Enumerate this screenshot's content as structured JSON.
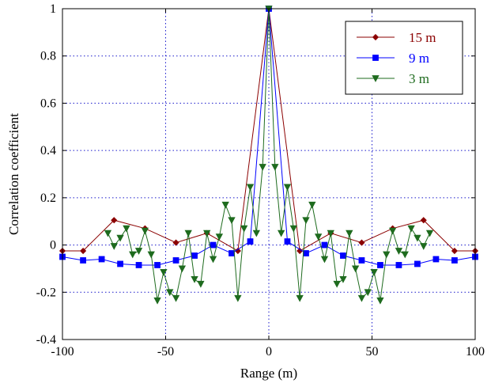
{
  "chart_data": {
    "type": "line",
    "xlabel": "Range (m)",
    "ylabel": "Correlation coefficient",
    "xlim": [
      -100,
      100
    ],
    "ylim": [
      -0.4,
      1
    ],
    "xticks": [
      -100,
      -50,
      0,
      50,
      100
    ],
    "xtick_labels": [
      "-100",
      "-50",
      "0",
      "50",
      "100"
    ],
    "yticks": [
      -0.4,
      -0.2,
      0,
      0.2,
      0.4,
      0.6,
      0.8,
      1
    ],
    "ytick_labels": [
      "-0.4",
      "-0.2",
      "0",
      "0.2",
      "0.4",
      "0.6",
      "0.8",
      "1"
    ],
    "grid": true,
    "legend_position": "top-right",
    "series": [
      {
        "name": "15 m",
        "color": "#8b0000",
        "marker": "diamond",
        "x": [
          -100,
          -90,
          -75,
          -60,
          -45,
          -30,
          -15,
          0,
          15,
          30,
          45,
          60,
          75,
          90,
          100
        ],
        "y": [
          -0.025,
          -0.025,
          0.105,
          0.07,
          0.01,
          0.05,
          -0.025,
          1,
          -0.025,
          0.05,
          0.01,
          0.07,
          0.105,
          -0.025,
          -0.025
        ]
      },
      {
        "name": "9 m",
        "color": "#0000ff",
        "marker": "square",
        "x": [
          -100,
          -90,
          -81,
          -72,
          -63,
          -54,
          -45,
          -36,
          -27,
          -18,
          -9,
          0,
          9,
          18,
          27,
          36,
          45,
          54,
          63,
          72,
          81,
          90,
          100
        ],
        "y": [
          -0.05,
          -0.065,
          -0.06,
          -0.08,
          -0.085,
          -0.085,
          -0.065,
          -0.045,
          0.0,
          -0.035,
          0.015,
          1,
          0.015,
          -0.035,
          0.0,
          -0.045,
          -0.065,
          -0.085,
          -0.085,
          -0.08,
          -0.06,
          -0.065,
          -0.05
        ]
      },
      {
        "name": "3 m",
        "color": "#1e6b1e",
        "marker": "triangle-down",
        "x": [
          -78,
          -75,
          -72,
          -69,
          -66,
          -63,
          -60,
          -57,
          -54,
          -51,
          -48,
          -45,
          -42,
          -39,
          -36,
          -33,
          -30,
          -27,
          -24,
          -21,
          -18,
          -15,
          -12,
          -9,
          -6,
          -3,
          0,
          3,
          6,
          9,
          12,
          15,
          18,
          21,
          24,
          27,
          30,
          33,
          36,
          39,
          42,
          45,
          48,
          51,
          54,
          57,
          60,
          63,
          66,
          69,
          72,
          75,
          78
        ],
        "y": [
          0.05,
          -0.005,
          0.03,
          0.07,
          -0.04,
          -0.025,
          0.06,
          -0.04,
          -0.235,
          -0.115,
          -0.2,
          -0.225,
          -0.1,
          0.05,
          -0.145,
          -0.165,
          0.05,
          -0.06,
          0.035,
          0.17,
          0.105,
          -0.225,
          0.07,
          0.245,
          0.05,
          0.33,
          1,
          0.33,
          0.05,
          0.245,
          0.07,
          -0.225,
          0.105,
          0.17,
          0.035,
          -0.06,
          0.05,
          -0.165,
          -0.145,
          0.05,
          -0.1,
          -0.225,
          -0.2,
          -0.115,
          -0.235,
          -0.04,
          0.06,
          -0.025,
          -0.04,
          0.07,
          0.03,
          -0.005,
          0.05
        ]
      }
    ]
  }
}
